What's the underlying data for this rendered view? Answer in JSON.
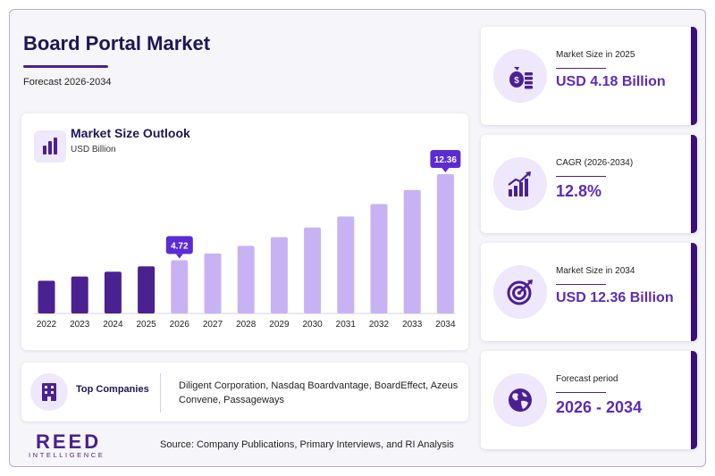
{
  "header": {
    "title": "Board Portal Market",
    "subtitle": "Forecast 2026-2034"
  },
  "chart_card": {
    "title": "Market Size Outlook",
    "unit": "USD Billion"
  },
  "chart_data": {
    "type": "bar",
    "title": "Market Size Outlook",
    "ylabel": "USD Billion",
    "categories": [
      "2022",
      "2023",
      "2024",
      "2025",
      "2026",
      "2027",
      "2028",
      "2029",
      "2030",
      "2031",
      "2032",
      "2033",
      "2034"
    ],
    "values": [
      2.9,
      3.28,
      3.7,
      4.18,
      4.72,
      5.32,
      6.0,
      6.77,
      7.63,
      8.61,
      9.71,
      10.95,
      12.36
    ],
    "ylim": [
      0,
      12.36
    ],
    "grid": false,
    "highlighted": [
      {
        "category": "2026",
        "label": "4.72"
      },
      {
        "category": "2034",
        "label": "12.36"
      }
    ],
    "colors": {
      "historical": "#4a2191",
      "forecast": "#c7b3f4",
      "callout": "#5b2cd6"
    }
  },
  "companies": {
    "label": "Top Companies",
    "list": "Diligent Corporation, Nasdaq Boardvantage, BoardEffect, Azeus Convene, Passageways"
  },
  "logo": {
    "main": "REED",
    "sub": "INTELLIGENCE"
  },
  "source": "Source: Company Publications, Primary Interviews, and RI Analysis",
  "kpis": [
    {
      "label": "Market Size in 2025",
      "value": "USD 4.18 Billion",
      "icon": "money-bag-icon"
    },
    {
      "label": "CAGR (2026-2034)",
      "value": "12.8%",
      "icon": "growth-chart-icon"
    },
    {
      "label": "Market Size in 2034",
      "value": "USD 12.36 Billion",
      "icon": "target-icon"
    },
    {
      "label": "Forecast period",
      "value": "2026 - 2034",
      "icon": "globe-icon"
    }
  ]
}
